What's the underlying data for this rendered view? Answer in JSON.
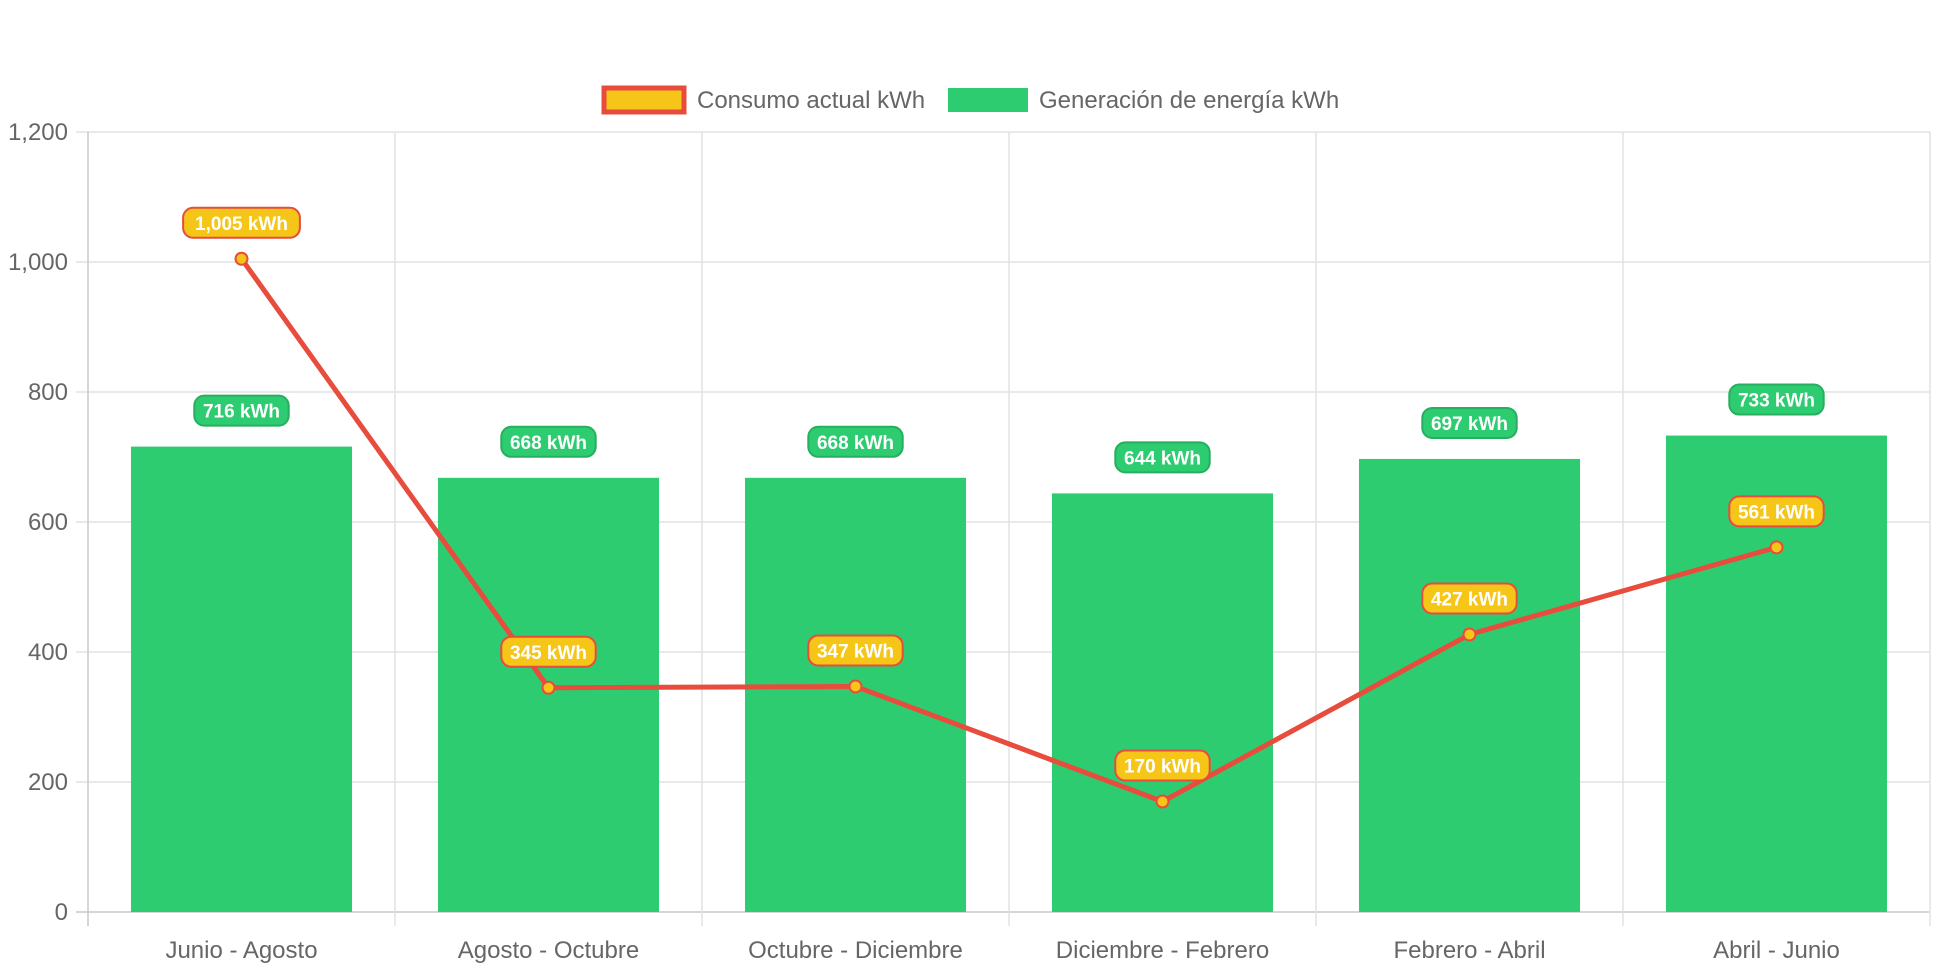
{
  "chart_data": {
    "type": "bar",
    "title": "",
    "xlabel": "",
    "ylabel": "",
    "ylim": [
      0,
      1200
    ],
    "y_ticks": [
      "0",
      "200",
      "400",
      "600",
      "800",
      "1,000",
      "1,200"
    ],
    "y_tick_values": [
      0,
      200,
      400,
      600,
      800,
      1000,
      1200
    ],
    "grid": true,
    "legend_position": "top-center",
    "categories": [
      "Junio - Agosto",
      "Agosto - Octubre",
      "Octubre - Diciembre",
      "Diciembre - Febrero",
      "Febrero - Abril",
      "Abril - Junio"
    ],
    "series": [
      {
        "name": "Consumo actual kWh",
        "type": "line",
        "values": [
          1005,
          345,
          347,
          170,
          427,
          561
        ],
        "labels": [
          "1,005 kWh",
          "345 kWh",
          "347 kWh",
          "170 kWh",
          "427 kWh",
          "561 kWh"
        ],
        "color": "#e74c3c",
        "fill": "#f5c518"
      },
      {
        "name": "Generación de energía kWh",
        "type": "bar",
        "values": [
          716,
          668,
          668,
          644,
          697,
          733
        ],
        "labels": [
          "716 kWh",
          "668 kWh",
          "668 kWh",
          "644 kWh",
          "697 kWh",
          "733 kWh"
        ],
        "color": "#2ecc71"
      }
    ]
  }
}
